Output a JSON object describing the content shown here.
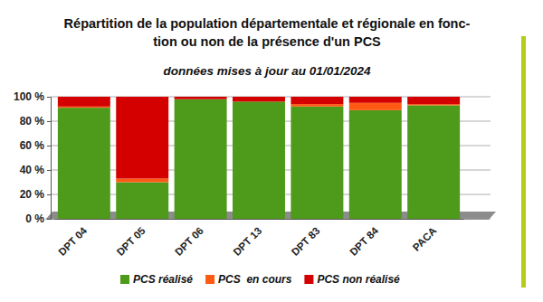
{
  "chart_data": {
    "type": "bar",
    "title": [
      "Répartition de la population départementale et régionale en fonc-",
      "tion ou non de la présence d'un PCS"
    ],
    "subtitle": "données mises à jour au 01/01/2024",
    "categories": [
      "DPT 04",
      "DPT 05",
      "DPT 06",
      "DPT 13",
      "DPT 83",
      "DPT 84",
      "PACA"
    ],
    "series": [
      {
        "name": "PCS réalisé",
        "color": "#4e9a1a",
        "values": [
          91,
          30,
          98,
          96,
          92,
          89,
          93
        ]
      },
      {
        "name": "PCS  en cours",
        "color": "#ff5a14",
        "values": [
          1,
          3,
          0,
          0,
          2,
          6,
          1
        ]
      },
      {
        "name": "PCS non réalisé",
        "color": "#d40000",
        "values": [
          8,
          67,
          2,
          4,
          6,
          5,
          6
        ]
      }
    ],
    "stacked": true,
    "ylim": [
      0,
      100
    ],
    "yticks": [
      {
        "value": 0,
        "label": "0 %"
      },
      {
        "value": 20,
        "label": "20 %"
      },
      {
        "value": 40,
        "label": "40 %"
      },
      {
        "value": 60,
        "label": "60 %"
      },
      {
        "value": 80,
        "label": "80 %"
      },
      {
        "value": 100,
        "label": "100 %"
      }
    ],
    "grid": true,
    "legend": "bottom"
  }
}
